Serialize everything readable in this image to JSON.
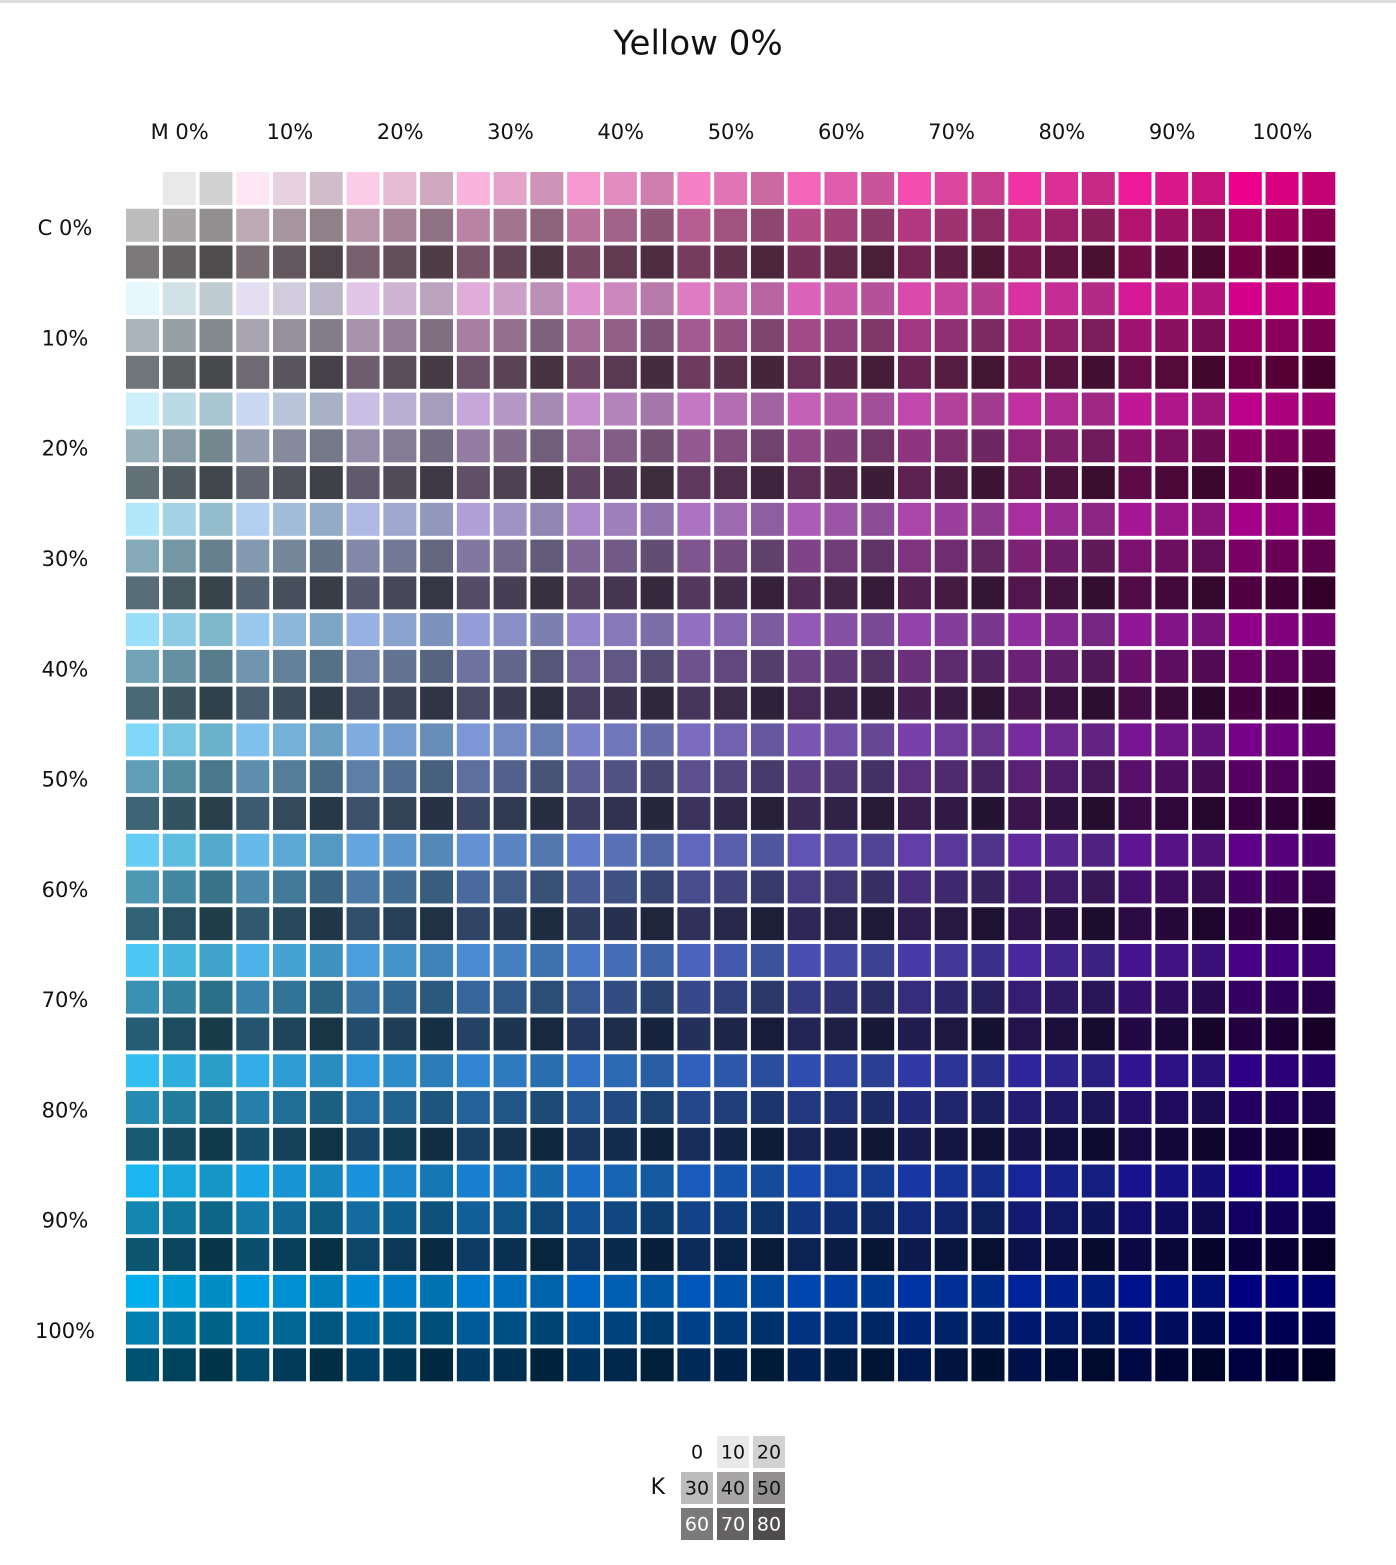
{
  "title": {
    "value": 0,
    "label": "Yellow 0%"
  },
  "magenta": [
    {
      "value": 0,
      "label": "M 0%"
    },
    {
      "value": 10,
      "label": "10%"
    },
    {
      "value": 20,
      "label": "20%"
    },
    {
      "value": 30,
      "label": "30%"
    },
    {
      "value": 40,
      "label": "40%"
    },
    {
      "value": 50,
      "label": "50%"
    },
    {
      "value": 60,
      "label": "60%"
    },
    {
      "value": 70,
      "label": "70%"
    },
    {
      "value": 80,
      "label": "80%"
    },
    {
      "value": 90,
      "label": "90%"
    },
    {
      "value": 100,
      "label": "100%"
    }
  ],
  "cyan": [
    {
      "value": 0,
      "label": "C 0%"
    },
    {
      "value": 10,
      "label": "10%"
    },
    {
      "value": 20,
      "label": "20%"
    },
    {
      "value": 30,
      "label": "30%"
    },
    {
      "value": 40,
      "label": "40%"
    },
    {
      "value": 50,
      "label": "50%"
    },
    {
      "value": 60,
      "label": "60%"
    },
    {
      "value": 70,
      "label": "70%"
    },
    {
      "value": 80,
      "label": "80%"
    },
    {
      "value": 90,
      "label": "90%"
    },
    {
      "value": 100,
      "label": "100%"
    }
  ],
  "black": {
    "label": "K",
    "values": [
      0,
      10,
      20,
      30,
      40,
      50,
      60,
      70,
      80
    ]
  }
}
